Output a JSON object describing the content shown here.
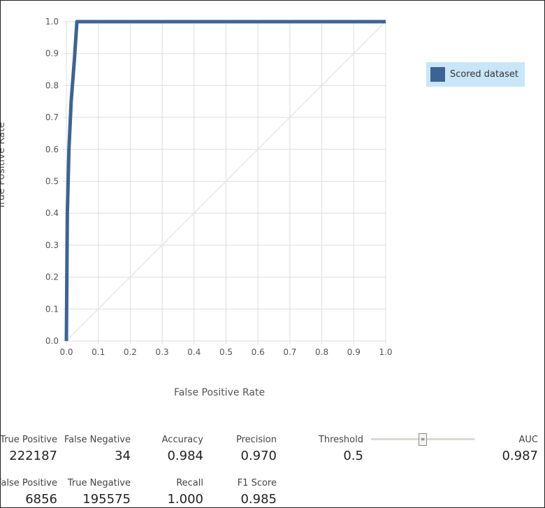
{
  "chart_data": {
    "type": "line",
    "xlabel": "False Positive Rate",
    "ylabel": "True Positive Rate",
    "xlim": [
      0.0,
      1.0
    ],
    "ylim": [
      0.0,
      1.0
    ],
    "x_ticks": [
      "0.0",
      "0.1",
      "0.2",
      "0.3",
      "0.4",
      "0.5",
      "0.6",
      "0.7",
      "0.8",
      "0.9",
      "1.0"
    ],
    "y_ticks": [
      "0.0",
      "0.1",
      "0.2",
      "0.3",
      "0.4",
      "0.5",
      "0.6",
      "0.7",
      "0.8",
      "0.9",
      "1.0"
    ],
    "grid": true,
    "legend_position": "top-right",
    "series": [
      {
        "name": "Scored dataset",
        "color": "#3b6494",
        "x": [
          0.0,
          0.003,
          0.008,
          0.015,
          0.025,
          0.033,
          1.0
        ],
        "y": [
          0.0,
          0.4,
          0.6,
          0.75,
          0.88,
          1.0,
          1.0
        ]
      }
    ],
    "reference_line": {
      "x": [
        0.0,
        1.0
      ],
      "y": [
        0.0,
        1.0
      ],
      "color": "#e6e6e6"
    }
  },
  "metrics": {
    "true_positive": {
      "label": "True Positive",
      "value": "222187"
    },
    "false_negative": {
      "label": "False Negative",
      "value": "34"
    },
    "accuracy": {
      "label": "Accuracy",
      "value": "0.984"
    },
    "precision": {
      "label": "Precision",
      "value": "0.970"
    },
    "threshold": {
      "label": "Threshold",
      "value": "0.5",
      "slider_value": 0.5
    },
    "auc": {
      "label": "AUC",
      "value": "0.987"
    },
    "false_positive": {
      "label": "False Positive",
      "value": "6856"
    },
    "true_negative": {
      "label": "True Negative",
      "value": "195575"
    },
    "recall": {
      "label": "Recall",
      "value": "1.000"
    },
    "f1_score": {
      "label": "F1 Score",
      "value": "0.985"
    }
  }
}
